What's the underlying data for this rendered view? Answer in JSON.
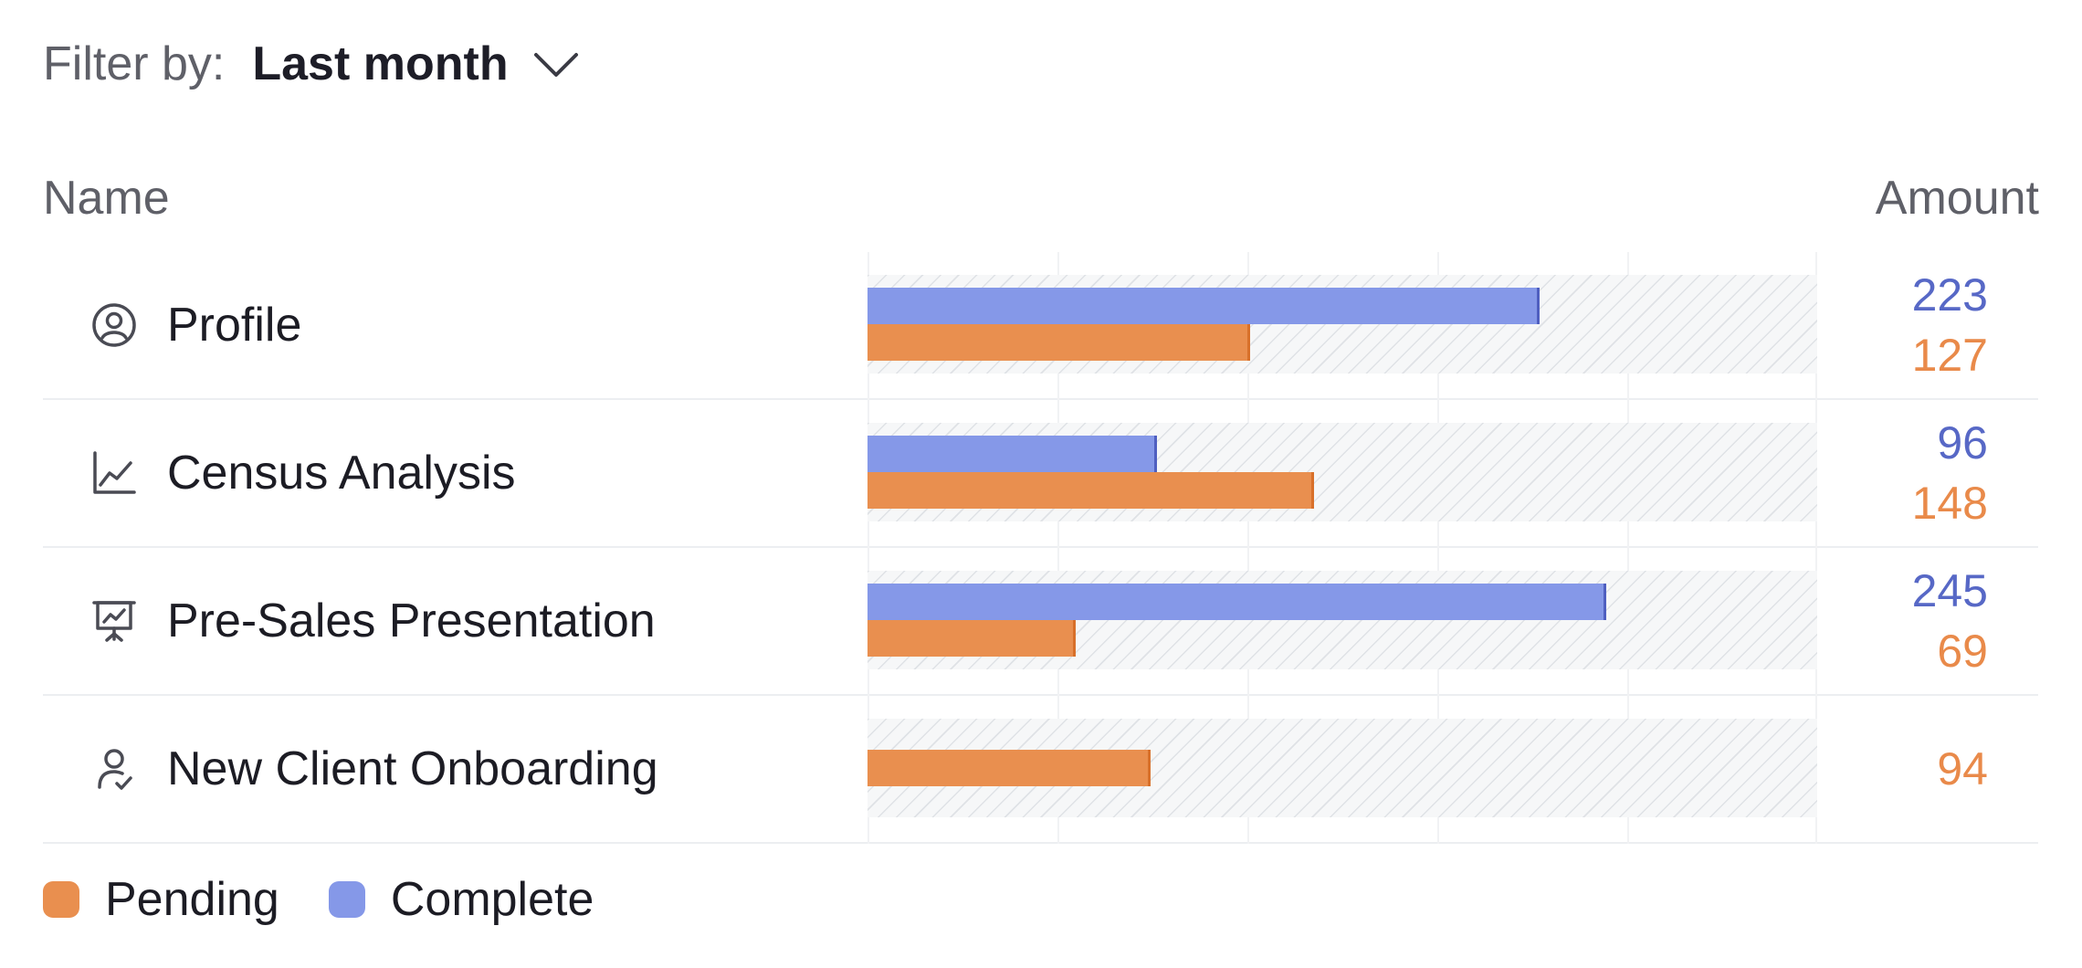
{
  "filter": {
    "label": "Filter by:",
    "value": "Last month"
  },
  "table": {
    "header_name": "Name",
    "header_amount": "Amount"
  },
  "colors": {
    "complete": "#8598e8",
    "complete_text": "#5768c6",
    "pending": "#e98f4f",
    "pending_text": "#e98a4a"
  },
  "legend": {
    "pending_label": "Pending",
    "complete_label": "Complete"
  },
  "chart_data": {
    "type": "bar",
    "orientation": "horizontal",
    "xlim": [
      0,
      315
    ],
    "categories": [
      "Profile",
      "Census Analysis",
      "Pre-Sales Presentation",
      "New Client Onboarding"
    ],
    "series": [
      {
        "name": "Complete",
        "values": [
          223,
          96,
          245,
          null
        ]
      },
      {
        "name": "Pending",
        "values": [
          127,
          148,
          69,
          94
        ]
      }
    ]
  },
  "rows": [
    {
      "name": "Profile",
      "icon": "user-circle-icon",
      "complete": "223",
      "pending": "127"
    },
    {
      "name": "Census Analysis",
      "icon": "line-chart-icon",
      "complete": "96",
      "pending": "148"
    },
    {
      "name": "Pre-Sales Presentation",
      "icon": "presentation-icon",
      "complete": "245",
      "pending": "69"
    },
    {
      "name": "New Client Onboarding",
      "icon": "user-check-icon",
      "complete": "",
      "pending": "94"
    }
  ]
}
